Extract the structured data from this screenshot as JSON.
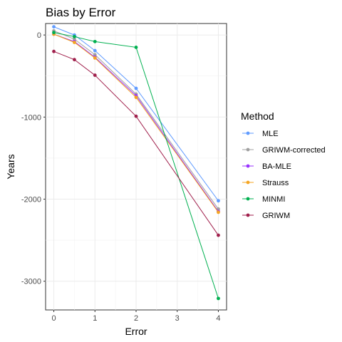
{
  "chart_data": {
    "type": "line",
    "title": "Bias by Error",
    "xlabel": "Error",
    "ylabel": "Years",
    "x": [
      0,
      0.5,
      1,
      2,
      4
    ],
    "xticks": [
      0,
      1,
      2,
      3,
      4
    ],
    "yticks": [
      0,
      -1000,
      -2000,
      -3000
    ],
    "xlim": [
      -0.2,
      4.2
    ],
    "ylim": [
      -3350,
      140
    ],
    "grid": true,
    "legend": {
      "title": "Method",
      "position": "right"
    },
    "series": [
      {
        "name": "MLE",
        "color": "#619CFF",
        "values": [
          100,
          0,
          -190,
          -650,
          -2020
        ]
      },
      {
        "name": "GRIWM-corrected",
        "color": "#A0A0A0",
        "values": [
          50,
          -50,
          -240,
          -720,
          -2120
        ]
      },
      {
        "name": "BA-MLE",
        "color": "#9933FF",
        "values": [
          10,
          -80,
          -270,
          -740,
          -2150
        ]
      },
      {
        "name": "Strauss",
        "color": "#F5A623",
        "values": [
          10,
          -90,
          -280,
          -760,
          -2160
        ]
      },
      {
        "name": "MINMI",
        "color": "#00B050",
        "values": [
          30,
          -20,
          -80,
          -150,
          -3210
        ]
      },
      {
        "name": "GRIWM",
        "color": "#A0204C",
        "values": [
          -200,
          -300,
          -490,
          -990,
          -2440
        ]
      }
    ]
  }
}
